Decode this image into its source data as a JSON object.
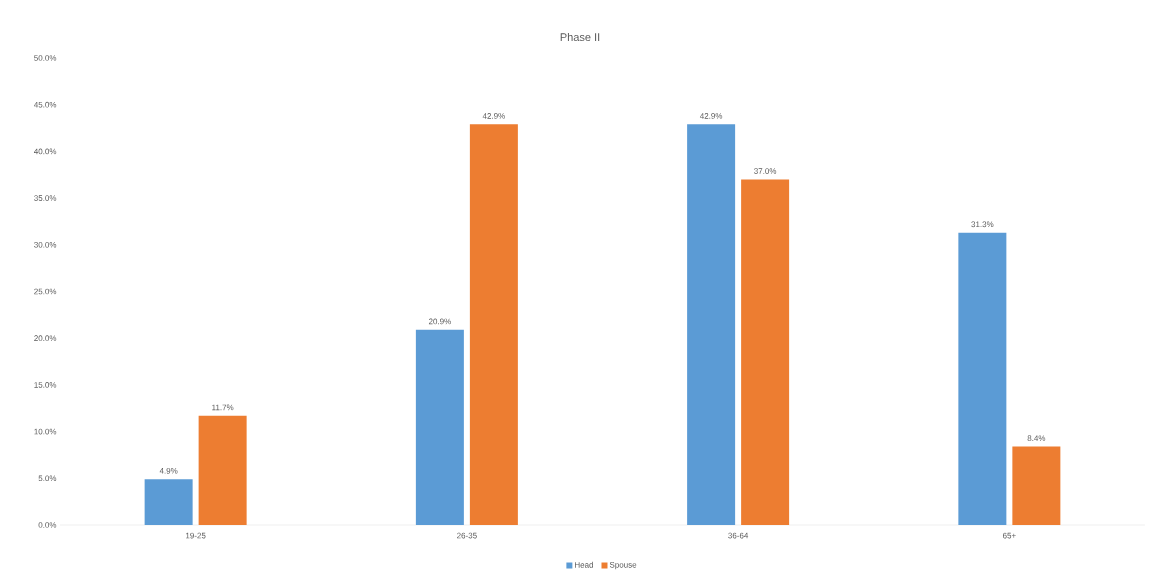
{
  "chart_data": {
    "type": "bar",
    "title": "Phase II",
    "categories": [
      "19-25",
      "26-35",
      "36-64",
      "65+"
    ],
    "series": [
      {
        "name": "Head",
        "color": "#5b9bd5",
        "values": [
          4.9,
          20.9,
          42.9,
          31.3
        ],
        "value_labels": [
          "4.9%",
          "20.9%",
          "42.9%",
          "31.3%"
        ]
      },
      {
        "name": "Spouse",
        "color": "#ed7d31",
        "values": [
          11.7,
          42.9,
          37.0,
          8.4
        ],
        "value_labels": [
          "11.7%",
          "42.9%",
          "37.0%",
          "8.4%"
        ]
      }
    ],
    "ylim": [
      0,
      50
    ],
    "yticks": [
      {
        "value": 0,
        "label": "0.0%"
      },
      {
        "value": 5,
        "label": "5.0%"
      },
      {
        "value": 10,
        "label": "10.0%"
      },
      {
        "value": 15,
        "label": "15.0%"
      },
      {
        "value": 20,
        "label": "20.0%"
      },
      {
        "value": 25,
        "label": "25.0%"
      },
      {
        "value": 30,
        "label": "30.0%"
      },
      {
        "value": 35,
        "label": "35.0%"
      },
      {
        "value": 40,
        "label": "40.0%"
      },
      {
        "value": 45,
        "label": "45.0%"
      },
      {
        "value": 50,
        "label": "50.0%"
      }
    ],
    "grid": false,
    "legend": "bottom"
  }
}
